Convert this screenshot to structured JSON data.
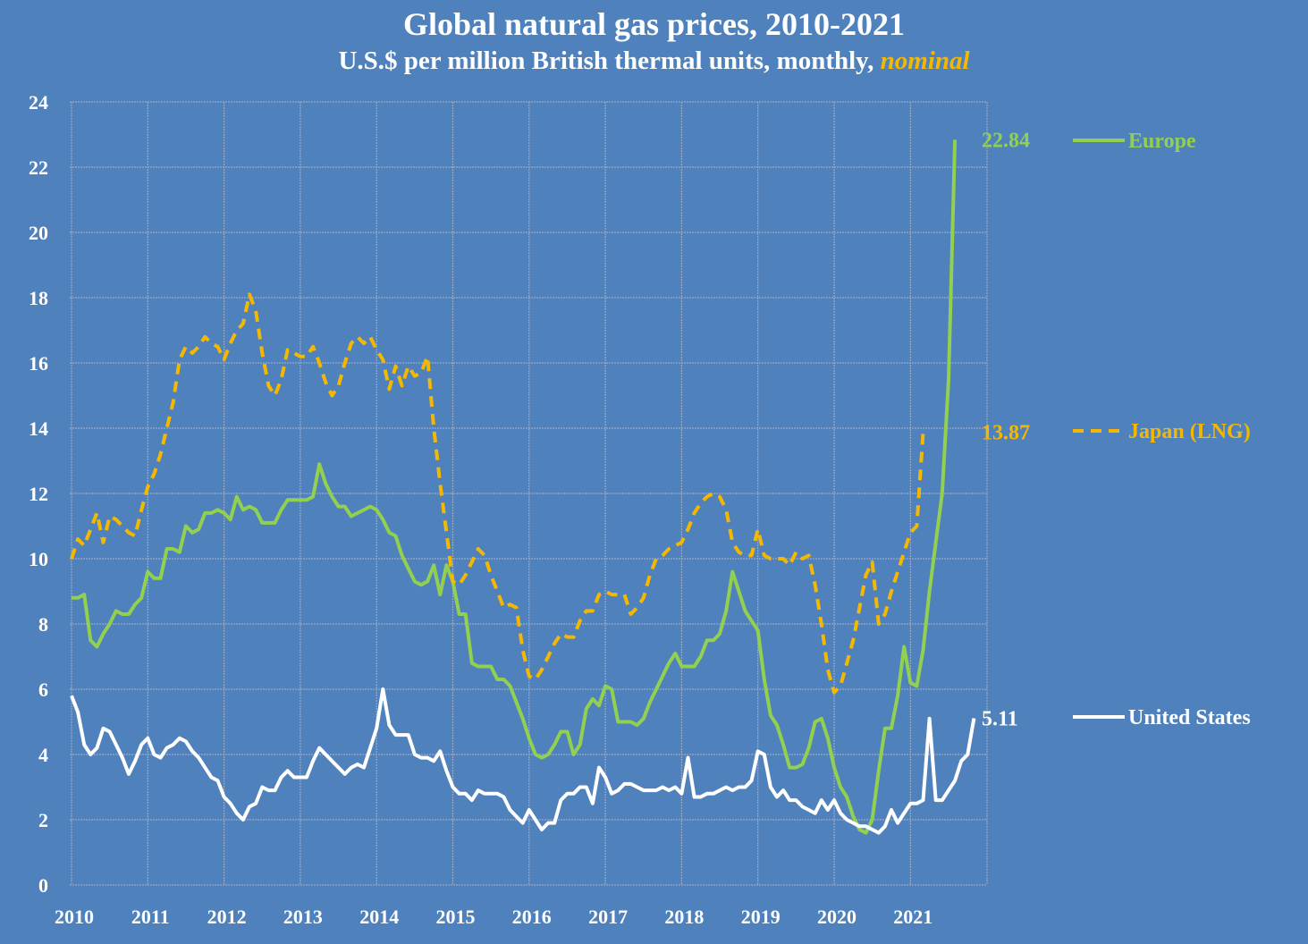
{
  "chart_data": {
    "type": "line",
    "title": "Global natural gas prices, 2010-2021",
    "subtitle_main": "U.S.$ per million British thermal units, monthly,",
    "subtitle_highlight": "nominal",
    "xlabel": "",
    "ylabel": "",
    "ylim": [
      0,
      24
    ],
    "yticks": [
      "0",
      "2",
      "4",
      "6",
      "8",
      "10",
      "12",
      "14",
      "16",
      "18",
      "20",
      "22",
      "24"
    ],
    "xticks": [
      "2010",
      "2011",
      "2012",
      "2013",
      "2014",
      "2015",
      "2016",
      "2017",
      "2018",
      "2019",
      "2020",
      "2021"
    ],
    "x_start": "2010-01",
    "x_frequency": "monthly",
    "grid": true,
    "legend_position": "right",
    "colors": {
      "background": "#4f81bd",
      "grid": "#9aa9c2",
      "europe": "#92d050",
      "japan": "#f5b800",
      "us": "#ffffff"
    },
    "series": [
      {
        "name": "Europe",
        "style": "solid",
        "end_label": "22.84",
        "values": [
          8.8,
          8.8,
          8.9,
          7.5,
          7.3,
          7.7,
          8.0,
          8.4,
          8.3,
          8.3,
          8.6,
          8.8,
          9.6,
          9.4,
          9.4,
          10.3,
          10.3,
          10.2,
          11.0,
          10.8,
          10.9,
          11.4,
          11.4,
          11.5,
          11.4,
          11.2,
          11.9,
          11.5,
          11.6,
          11.5,
          11.1,
          11.1,
          11.1,
          11.5,
          11.8,
          11.8,
          11.8,
          11.8,
          11.9,
          12.9,
          12.3,
          11.9,
          11.6,
          11.6,
          11.3,
          11.4,
          11.5,
          11.6,
          11.5,
          11.2,
          10.8,
          10.7,
          10.1,
          9.7,
          9.3,
          9.2,
          9.3,
          9.8,
          8.9,
          9.8,
          9.3,
          8.3,
          8.3,
          6.8,
          6.7,
          6.7,
          6.7,
          6.3,
          6.3,
          6.1,
          5.6,
          5.1,
          4.5,
          4.0,
          3.9,
          4.0,
          4.3,
          4.7,
          4.7,
          4.0,
          4.3,
          5.4,
          5.7,
          5.5,
          6.1,
          6.0,
          5.0,
          5.0,
          5.0,
          4.9,
          5.1,
          5.6,
          6.0,
          6.4,
          6.8,
          7.1,
          6.7,
          6.7,
          6.7,
          7.0,
          7.5,
          7.5,
          7.7,
          8.4,
          9.6,
          9.0,
          8.4,
          8.1,
          7.8,
          6.3,
          5.2,
          4.9,
          4.3,
          3.6,
          3.6,
          3.7,
          4.2,
          5.0,
          5.1,
          4.5,
          3.6,
          3.0,
          2.7,
          2.1,
          1.7,
          1.6,
          2.0,
          3.5,
          4.8,
          4.8,
          5.8,
          7.3,
          6.2,
          6.1,
          7.2,
          9.0,
          10.5,
          12.0,
          15.5,
          22.84
        ]
      },
      {
        "name": "Japan (LNG)",
        "style": "dashed",
        "end_label": "13.87",
        "values": [
          10.0,
          10.6,
          10.4,
          10.9,
          11.4,
          10.5,
          11.3,
          11.2,
          11.0,
          10.8,
          10.7,
          11.5,
          12.2,
          12.6,
          13.2,
          14.0,
          14.8,
          16.1,
          16.5,
          16.3,
          16.5,
          16.8,
          16.6,
          16.5,
          16.1,
          16.6,
          17.0,
          17.2,
          18.1,
          17.6,
          16.3,
          15.3,
          15.0,
          15.5,
          16.4,
          16.3,
          16.2,
          16.2,
          16.5,
          16.0,
          15.4,
          15.0,
          15.3,
          16.0,
          16.6,
          16.8,
          16.6,
          16.8,
          16.4,
          16.1,
          15.2,
          15.9,
          15.3,
          15.9,
          15.6,
          15.7,
          16.2,
          14.0,
          12.3,
          10.8,
          9.3,
          9.2,
          9.5,
          9.9,
          10.3,
          10.1,
          9.5,
          9.0,
          8.5,
          8.6,
          8.5,
          7.2,
          6.4,
          6.3,
          6.6,
          7.0,
          7.4,
          7.7,
          7.6,
          7.6,
          8.1,
          8.4,
          8.4,
          8.9,
          9.0,
          8.9,
          8.9,
          8.9,
          8.3,
          8.5,
          8.8,
          9.5,
          10.0,
          10.1,
          10.3,
          10.4,
          10.5,
          10.9,
          11.4,
          11.7,
          11.9,
          12.0,
          11.9,
          11.5,
          10.5,
          10.2,
          10.1,
          10.1,
          10.9,
          10.1,
          10.0,
          10.0,
          10.0,
          9.8,
          10.2,
          10.0,
          10.1,
          9.2,
          8.0,
          6.6,
          5.9,
          6.1,
          6.8,
          7.5,
          8.5,
          9.5,
          9.9,
          8.0,
          8.3,
          9.0,
          9.6,
          10.2,
          10.8,
          11.0,
          13.87
        ]
      },
      {
        "name": "United States",
        "style": "solid",
        "end_label": "5.11",
        "values": [
          5.8,
          5.3,
          4.3,
          4.0,
          4.2,
          4.8,
          4.7,
          4.3,
          3.9,
          3.4,
          3.8,
          4.3,
          4.5,
          4.0,
          3.9,
          4.2,
          4.3,
          4.5,
          4.4,
          4.1,
          3.9,
          3.6,
          3.3,
          3.2,
          2.7,
          2.5,
          2.2,
          2.0,
          2.4,
          2.5,
          3.0,
          2.9,
          2.9,
          3.3,
          3.5,
          3.3,
          3.3,
          3.3,
          3.8,
          4.2,
          4.0,
          3.8,
          3.6,
          3.4,
          3.6,
          3.7,
          3.6,
          4.2,
          4.8,
          6.0,
          4.9,
          4.6,
          4.6,
          4.6,
          4.0,
          3.9,
          3.9,
          3.8,
          4.1,
          3.5,
          3.0,
          2.8,
          2.8,
          2.6,
          2.9,
          2.8,
          2.8,
          2.8,
          2.7,
          2.3,
          2.1,
          1.9,
          2.3,
          2.0,
          1.7,
          1.9,
          1.9,
          2.6,
          2.8,
          2.8,
          3.0,
          3.0,
          2.5,
          3.6,
          3.3,
          2.8,
          2.9,
          3.1,
          3.1,
          3.0,
          2.9,
          2.9,
          2.9,
          3.0,
          2.9,
          3.0,
          2.8,
          3.9,
          2.7,
          2.7,
          2.8,
          2.8,
          2.9,
          3.0,
          2.9,
          3.0,
          3.0,
          3.2,
          4.1,
          4.0,
          3.0,
          2.7,
          2.9,
          2.6,
          2.6,
          2.4,
          2.3,
          2.2,
          2.6,
          2.3,
          2.6,
          2.2,
          2.0,
          1.9,
          1.8,
          1.8,
          1.7,
          1.6,
          1.8,
          2.3,
          1.9,
          2.2,
          2.5,
          2.5,
          2.6,
          5.1,
          2.6,
          2.6,
          2.9,
          3.2,
          3.8,
          4.0,
          5.11
        ]
      }
    ]
  }
}
